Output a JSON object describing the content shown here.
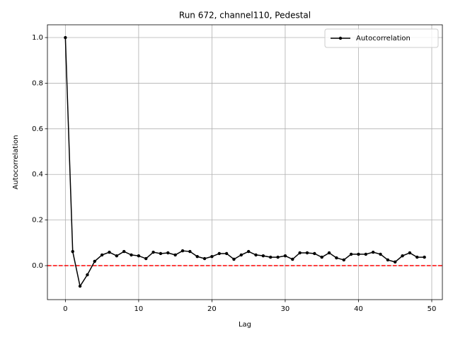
{
  "chart_data": {
    "type": "line",
    "title": "Run 672, channel110, Pedestal",
    "xlabel": "Lag",
    "ylabel": "Autocorrelation",
    "x": [
      0,
      1,
      2,
      3,
      4,
      5,
      6,
      7,
      8,
      9,
      10,
      11,
      12,
      13,
      14,
      15,
      16,
      17,
      18,
      19,
      20,
      21,
      22,
      23,
      24,
      25,
      26,
      27,
      28,
      29,
      30,
      31,
      32,
      33,
      34,
      35,
      36,
      37,
      38,
      39,
      40,
      41,
      42,
      43,
      44,
      45,
      46,
      47,
      48,
      49
    ],
    "series": [
      {
        "name": "Autocorrelation",
        "color": "#000000",
        "marker": "circle",
        "values": [
          1.0,
          0.062,
          -0.09,
          -0.04,
          0.019,
          0.047,
          0.059,
          0.043,
          0.062,
          0.047,
          0.043,
          0.031,
          0.059,
          0.053,
          0.056,
          0.047,
          0.065,
          0.062,
          0.04,
          0.031,
          0.04,
          0.053,
          0.053,
          0.028,
          0.047,
          0.062,
          0.047,
          0.043,
          0.037,
          0.037,
          0.043,
          0.028,
          0.056,
          0.056,
          0.053,
          0.037,
          0.056,
          0.034,
          0.025,
          0.05,
          0.05,
          0.05,
          0.059,
          0.05,
          0.025,
          0.016,
          0.043,
          0.056,
          0.037,
          0.037
        ]
      }
    ],
    "reference_line": {
      "value": 0,
      "color": "#ff0000",
      "style": "dashed"
    },
    "xlim": [
      -2.45,
      51.45
    ],
    "xticks": [
      0,
      10,
      20,
      30,
      40,
      50
    ],
    "ylim": [
      -0.149,
      1.056
    ],
    "yticks": [
      {
        "value": 0,
        "label": "0.0"
      },
      {
        "value": 0.2,
        "label": "0.2"
      },
      {
        "value": 0.4,
        "label": "0.4"
      },
      {
        "value": 0.6,
        "label": "0.6"
      },
      {
        "value": 0.8,
        "label": "0.8"
      },
      {
        "value": 1,
        "label": "1.0"
      }
    ],
    "grid": true,
    "legend": "upper-right"
  }
}
